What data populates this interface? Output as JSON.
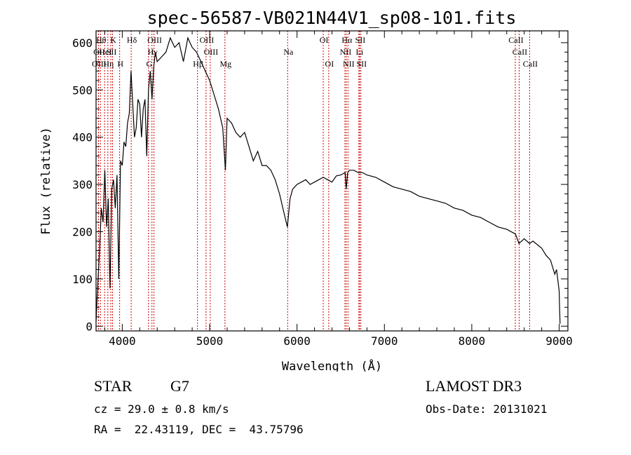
{
  "chart_data": {
    "type": "line",
    "title": "spec-56587-VB021N44V1_sp08-101.fits",
    "xlabel": "Wavelength (Å)",
    "ylabel": "Flux (relative)",
    "xlim": [
      3700,
      9100
    ],
    "ylim": [
      -10,
      625
    ],
    "xticks": [
      4000,
      5000,
      6000,
      7000,
      8000,
      9000
    ],
    "yticks": [
      0,
      100,
      200,
      300,
      400,
      500,
      600
    ],
    "grid": false,
    "series": [
      {
        "x": [
          3700,
          3720,
          3740,
          3760,
          3780,
          3800,
          3820,
          3840,
          3860,
          3880,
          3900,
          3920,
          3940,
          3960,
          3980,
          4000,
          4020,
          4040,
          4060,
          4080,
          4100,
          4120,
          4140,
          4160,
          4180,
          4200,
          4220,
          4240,
          4260,
          4280,
          4300,
          4320,
          4340,
          4360,
          4380,
          4400,
          4450,
          4500,
          4550,
          4600,
          4650,
          4700,
          4750,
          4800,
          4850,
          4900,
          4950,
          5000,
          5050,
          5100,
          5150,
          5180,
          5200,
          5250,
          5300,
          5350,
          5400,
          5450,
          5500,
          5550,
          5600,
          5650,
          5700,
          5750,
          5800,
          5850,
          5890,
          5920,
          5950,
          6000,
          6050,
          6100,
          6150,
          6200,
          6250,
          6300,
          6350,
          6400,
          6450,
          6500,
          6550,
          6563,
          6580,
          6600,
          6650,
          6700,
          6750,
          6800,
          6900,
          7000,
          7100,
          7200,
          7300,
          7400,
          7500,
          7600,
          7700,
          7800,
          7900,
          8000,
          8100,
          8200,
          8300,
          8400,
          8500,
          8540,
          8600,
          8662,
          8700,
          8800,
          8850,
          8900,
          8950,
          8970,
          9000,
          9010
        ],
        "values": [
          10,
          90,
          160,
          250,
          220,
          330,
          210,
          270,
          80,
          290,
          310,
          250,
          320,
          100,
          350,
          340,
          390,
          380,
          430,
          450,
          540,
          470,
          400,
          420,
          480,
          470,
          400,
          460,
          480,
          360,
          500,
          540,
          480,
          550,
          580,
          560,
          570,
          580,
          610,
          590,
          600,
          560,
          610,
          590,
          580,
          560,
          540,
          520,
          490,
          460,
          420,
          330,
          440,
          430,
          410,
          400,
          410,
          380,
          350,
          370,
          340,
          340,
          330,
          310,
          280,
          240,
          210,
          270,
          290,
          300,
          305,
          310,
          300,
          305,
          310,
          315,
          310,
          305,
          318,
          320,
          325,
          290,
          325,
          330,
          330,
          325,
          325,
          320,
          315,
          305,
          295,
          290,
          285,
          275,
          270,
          265,
          260,
          250,
          245,
          235,
          230,
          220,
          210,
          205,
          195,
          175,
          185,
          175,
          180,
          165,
          150,
          140,
          110,
          120,
          75,
          5
        ]
      }
    ],
    "lines": [
      {
        "x": 3750,
        "label": "Hθ",
        "row": 0
      },
      {
        "x": 3728,
        "label": "OII",
        "row": 1
      },
      {
        "x": 3727,
        "label": "OIII",
        "row": 2
      },
      {
        "x": 3835,
        "label": "Hη",
        "row": 2
      },
      {
        "x": 3798,
        "label": "HeI",
        "row": 1
      },
      {
        "x": 3889,
        "label": "K",
        "row": 0
      },
      {
        "x": 3869,
        "label": "SII",
        "row": 1
      },
      {
        "x": 3970,
        "label": "H",
        "row": 2
      },
      {
        "x": 4102,
        "label": "Hδ",
        "row": 0
      },
      {
        "x": 4340,
        "label": "Hγ",
        "row": 1
      },
      {
        "x": 4300,
        "label": "G",
        "row": 2
      },
      {
        "x": 4363,
        "label": "OIII",
        "row": 0
      },
      {
        "x": 4861,
        "label": "Hβ",
        "row": 2
      },
      {
        "x": 4959,
        "label": "OIII",
        "row": 0
      },
      {
        "x": 5007,
        "label": "OIII",
        "row": 1
      },
      {
        "x": 5175,
        "label": "Mg",
        "row": 2
      },
      {
        "x": 5893,
        "label": "Na",
        "row": 1
      },
      {
        "x": 6300,
        "label": "OI",
        "row": 0
      },
      {
        "x": 6363,
        "label": "OI",
        "row": 2
      },
      {
        "x": 6563,
        "label": "Hα",
        "row": 0
      },
      {
        "x": 6548,
        "label": "NII",
        "row": 1
      },
      {
        "x": 6583,
        "label": "NII",
        "row": 2
      },
      {
        "x": 6716,
        "label": "SII",
        "row": 0
      },
      {
        "x": 6708,
        "label": "Li",
        "row": 1
      },
      {
        "x": 6731,
        "label": "SII",
        "row": 2
      },
      {
        "x": 8498,
        "label": "CaII",
        "row": 0
      },
      {
        "x": 8542,
        "label": "CaII",
        "row": 1
      },
      {
        "x": 8662,
        "label": "CaII",
        "row": 2
      }
    ]
  },
  "info": {
    "class": "STAR",
    "subclass": "G7",
    "cz": "cz = 29.0 ± 0.8 km/s",
    "radec": "RA =  22.43119, DEC =  43.75796",
    "survey": "LAMOST DR3",
    "obsdate": "Obs-Date: 20131021"
  },
  "colors": {
    "spectrum": "#000000",
    "line_markers": "#cc0000",
    "axes": "#000000"
  }
}
